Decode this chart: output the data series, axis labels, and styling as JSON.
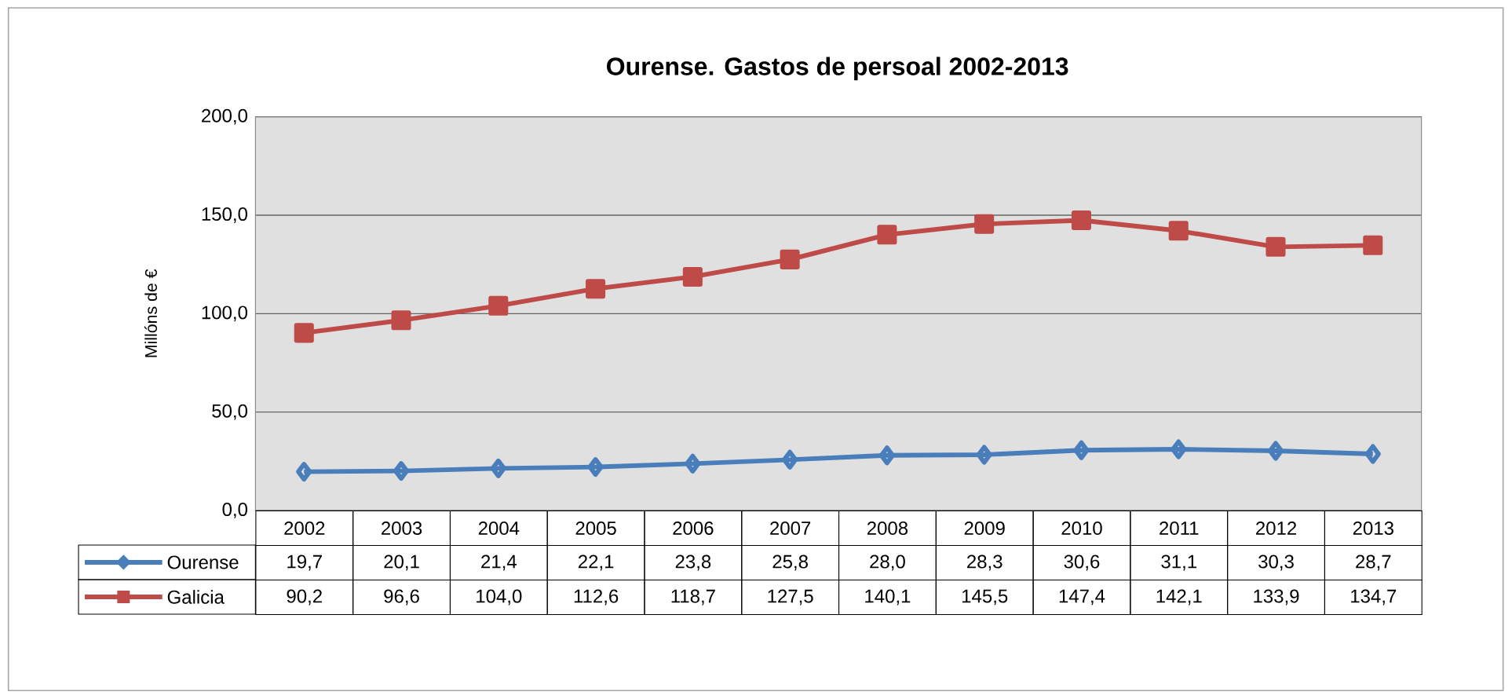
{
  "chart_data": {
    "type": "line",
    "title": "Ourense. Gastos de persoal  2002-2013",
    "ylabel": "Millóns de €",
    "categories": [
      "2002",
      "2003",
      "2004",
      "2005",
      "2006",
      "2007",
      "2008",
      "2009",
      "2010",
      "2011",
      "2012",
      "2013"
    ],
    "series": [
      {
        "name": "Ourense",
        "color": "#4a7ebb",
        "marker": "diamond",
        "values": [
          19.7,
          20.1,
          21.4,
          22.1,
          23.8,
          25.8,
          28.0,
          28.3,
          30.6,
          31.1,
          30.3,
          28.7
        ],
        "value_labels": [
          "19,7",
          "20,1",
          "21,4",
          "22,1",
          "23,8",
          "25,8",
          "28,0",
          "28,3",
          "30,6",
          "31,1",
          "30,3",
          "28,7"
        ]
      },
      {
        "name": "Galicia",
        "color": "#be4b48",
        "marker": "square",
        "values": [
          90.2,
          96.6,
          104.0,
          112.6,
          118.7,
          127.5,
          140.1,
          145.5,
          147.4,
          142.1,
          133.9,
          134.7
        ],
        "value_labels": [
          "90,2",
          "96,6",
          "104,0",
          "112,6",
          "118,7",
          "127,5",
          "140,1",
          "145,5",
          "147,4",
          "142,1",
          "133,9",
          "134,7"
        ]
      }
    ],
    "ylim": [
      0,
      200
    ],
    "yticks": [
      {
        "value": 0,
        "label": "0,0"
      },
      {
        "value": 50,
        "label": "50,0"
      },
      {
        "value": 100,
        "label": "100,0"
      },
      {
        "value": 150,
        "label": "150,0"
      },
      {
        "value": 200,
        "label": "200,0"
      }
    ],
    "grid": "y",
    "legend": "bottom",
    "line_style": "solid"
  }
}
